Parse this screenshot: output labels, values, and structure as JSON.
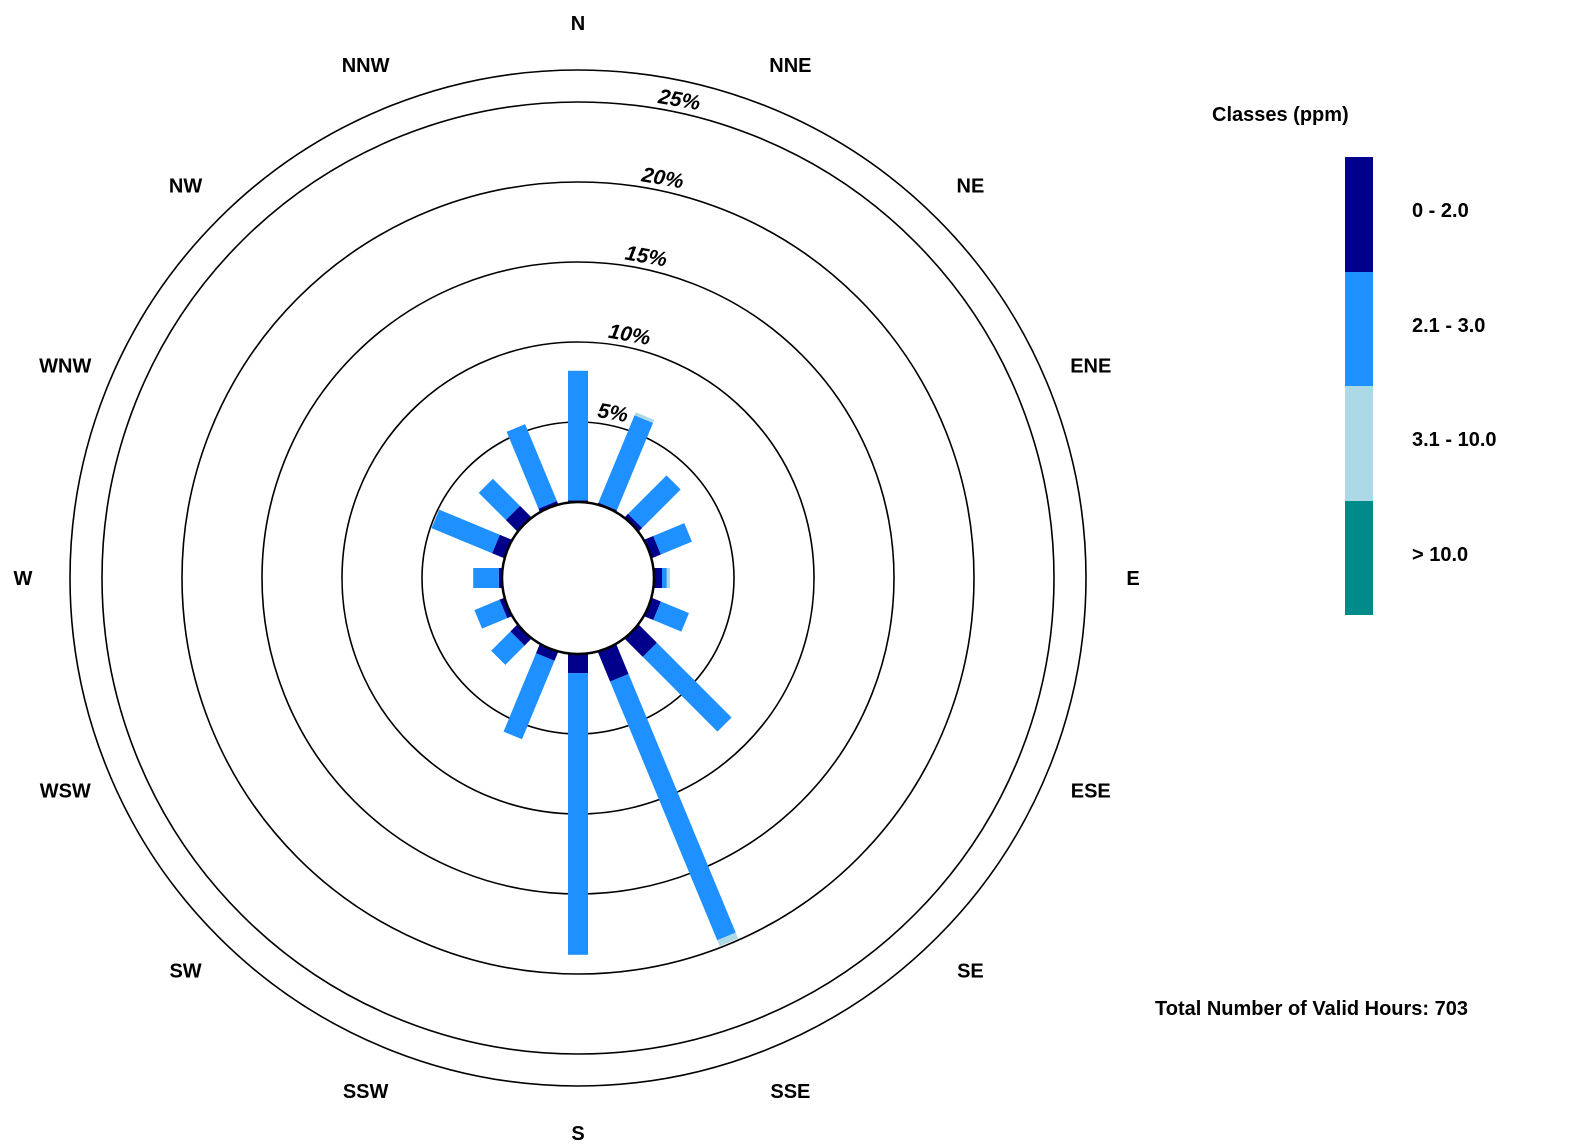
{
  "chart_data": {
    "type": "wind-rose",
    "directions": [
      "N",
      "NNE",
      "NE",
      "ENE",
      "E",
      "ESE",
      "SE",
      "SSE",
      "S",
      "SSW",
      "SW",
      "WSW",
      "W",
      "WNW",
      "NW",
      "NNW"
    ],
    "ring_values": [
      5,
      10,
      15,
      20,
      25
    ],
    "ring_labels": [
      "5%",
      "10%",
      "15%",
      "20%",
      "25%"
    ],
    "max_percent": 27,
    "legend_title": "Classes (ppm)",
    "classes": [
      {
        "name": "0 - 2.0",
        "color": "#00008B"
      },
      {
        "name": "2.1 - 3.0",
        "color": "#1E90FF"
      },
      {
        "name": "3.1 - 10.0",
        "color": "#ADD8E6"
      },
      {
        "name": "> 10.0",
        "color": "#008B8B"
      }
    ],
    "series": [
      {
        "name": "0 - 2.0",
        "values": [
          0.1,
          0.1,
          0.3,
          0.6,
          0.5,
          0.6,
          1.6,
          2.0,
          1.2,
          0.6,
          0.6,
          0.3,
          0.2,
          0.8,
          1.0,
          0.2
        ]
      },
      {
        "name": "2.1 - 3.0",
        "values": [
          8.1,
          5.9,
          3.4,
          2.1,
          0.3,
          1.9,
          6.6,
          17.5,
          17.6,
          5.3,
          1.7,
          1.7,
          1.6,
          4.1,
          2.4,
          5.2
        ]
      },
      {
        "name": "3.1 - 10.0",
        "values": [
          0,
          0.2,
          0,
          0,
          0.2,
          0,
          0,
          0.4,
          0,
          0,
          0,
          0,
          0,
          0,
          0,
          0
        ]
      },
      {
        "name": "> 10.0",
        "values": [
          0,
          0,
          0,
          0,
          0,
          0,
          0,
          0,
          0,
          0,
          0,
          0,
          0,
          0,
          0,
          0
        ]
      }
    ],
    "total_label": "Total Number of Valid Hours: 703"
  }
}
